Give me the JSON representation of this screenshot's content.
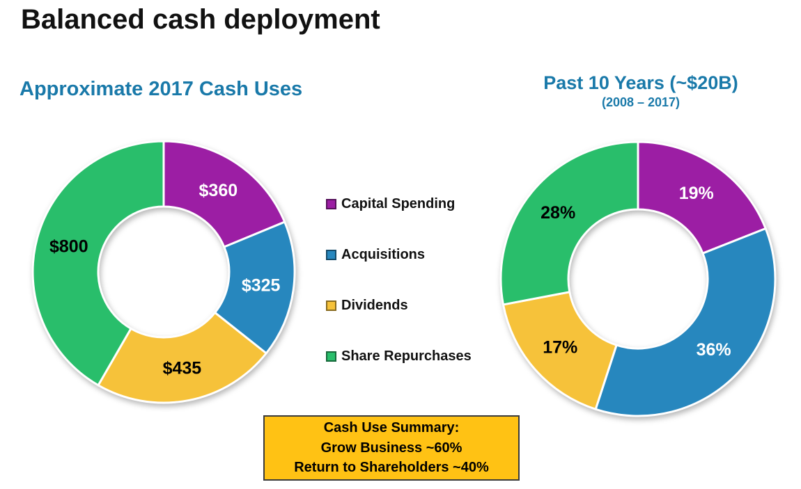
{
  "title": "Balanced cash deployment",
  "legend": [
    {
      "label": "Capital Spending",
      "color": "#9C1EA4"
    },
    {
      "label": "Acquisitions",
      "color": "#2787BE"
    },
    {
      "label": "Dividends",
      "color": "#F6C23A"
    },
    {
      "label": "Share Repurchases",
      "color": "#29BE6B"
    }
  ],
  "summary_box": {
    "line1": "Cash Use Summary:",
    "line2": "Grow Business ~60%",
    "line3": "Return to Shareholders ~40%"
  },
  "chart_data": [
    {
      "type": "pie",
      "donut": true,
      "title": "Approximate 2017 Cash Uses",
      "categories": [
        "Capital Spending",
        "Acquisitions",
        "Dividends",
        "Share Repurchases"
      ],
      "values": [
        360,
        325,
        435,
        800
      ],
      "labels": [
        "$360",
        "$325",
        "$435",
        "$800"
      ],
      "colors": [
        "#9C1EA4",
        "#2787BE",
        "#F6C23A",
        "#29BE6B"
      ],
      "label_colors": [
        "#FFFFFF",
        "#FFFFFF",
        "#000000",
        "#000000"
      ],
      "start_angle_deg": -90,
      "direction": "clockwise",
      "legend_position": "right-of-chart"
    },
    {
      "type": "pie",
      "donut": true,
      "title": "Past 10 Years (~$20B)",
      "subtitle": "(2008 – 2017)",
      "categories": [
        "Capital Spending",
        "Acquisitions",
        "Dividends",
        "Share Repurchases"
      ],
      "values": [
        19,
        36,
        17,
        28
      ],
      "labels": [
        "19%",
        "36%",
        "17%",
        "28%"
      ],
      "colors": [
        "#9C1EA4",
        "#2787BE",
        "#F6C23A",
        "#29BE6B"
      ],
      "label_colors": [
        "#FFFFFF",
        "#FFFFFF",
        "#000000",
        "#000000"
      ],
      "start_angle_deg": -90,
      "direction": "clockwise",
      "legend_position": "left-of-chart"
    }
  ]
}
